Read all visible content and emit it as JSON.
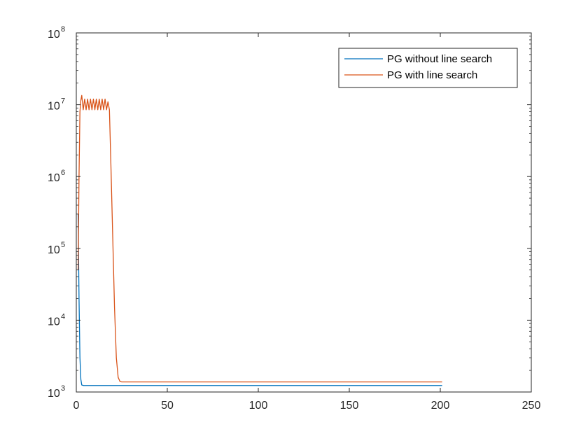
{
  "chart_data": {
    "type": "line",
    "title": "",
    "xlabel": "",
    "ylabel": "",
    "xlim": [
      0,
      250
    ],
    "ylim": [
      1000,
      100000000
    ],
    "yscale": "log",
    "grid": false,
    "legend_position": "top-right",
    "x_ticks": [
      {
        "value": 0,
        "label": "0"
      },
      {
        "value": 50,
        "label": "50"
      },
      {
        "value": 100,
        "label": "100"
      },
      {
        "value": 150,
        "label": "150"
      },
      {
        "value": 200,
        "label": "200"
      },
      {
        "value": 250,
        "label": "250"
      }
    ],
    "y_ticks": [
      {
        "value": 1000,
        "base": "10",
        "exp": "3"
      },
      {
        "value": 10000,
        "base": "10",
        "exp": "4"
      },
      {
        "value": 100000,
        "base": "10",
        "exp": "5"
      },
      {
        "value": 1000000,
        "base": "10",
        "exp": "6"
      },
      {
        "value": 10000000,
        "base": "10",
        "exp": "7"
      },
      {
        "value": 100000000,
        "base": "10",
        "exp": "8"
      }
    ],
    "series": [
      {
        "name": "PG without line search",
        "color": "#0072BD",
        "x": [
          1,
          1.5,
          2,
          2.5,
          3,
          4,
          6,
          201
        ],
        "y": [
          300000,
          20000,
          3000,
          1500,
          1250,
          1230,
          1230,
          1230
        ]
      },
      {
        "name": "PG with line search",
        "color": "#D95319",
        "x": [
          1,
          1.5,
          2,
          2.5,
          3,
          3.8,
          4.6,
          5.4,
          6.2,
          7,
          7.8,
          8.6,
          9.4,
          10.2,
          11,
          11.8,
          12.6,
          13.4,
          14.2,
          15,
          15.8,
          16.6,
          17.4,
          18.2,
          19,
          20,
          21,
          22,
          23,
          24,
          25,
          30,
          201
        ],
        "y": [
          50000,
          1000000,
          8000000,
          11500000,
          13500000,
          8500000,
          12000000,
          8500000,
          12000000,
          8500000,
          12000000,
          8500000,
          12000000,
          8500000,
          12000000,
          8500000,
          12000000,
          8500000,
          12000000,
          8500000,
          12000000,
          8500000,
          11000000,
          8500000,
          1500000,
          150000,
          15000,
          3000,
          1600,
          1400,
          1380,
          1380,
          1380
        ]
      }
    ]
  }
}
